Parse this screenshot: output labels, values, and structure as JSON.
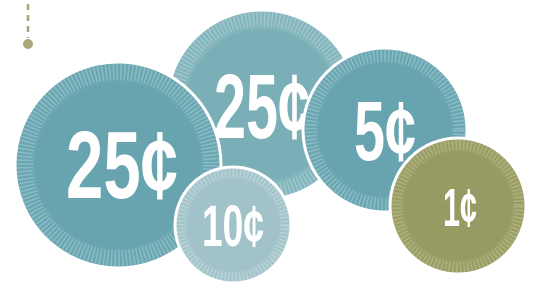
{
  "coins": [
    {
      "label": "25¢"
    },
    {
      "label": "25¢"
    },
    {
      "label": "5¢"
    },
    {
      "label": "10¢"
    },
    {
      "label": "1¢"
    }
  ]
}
